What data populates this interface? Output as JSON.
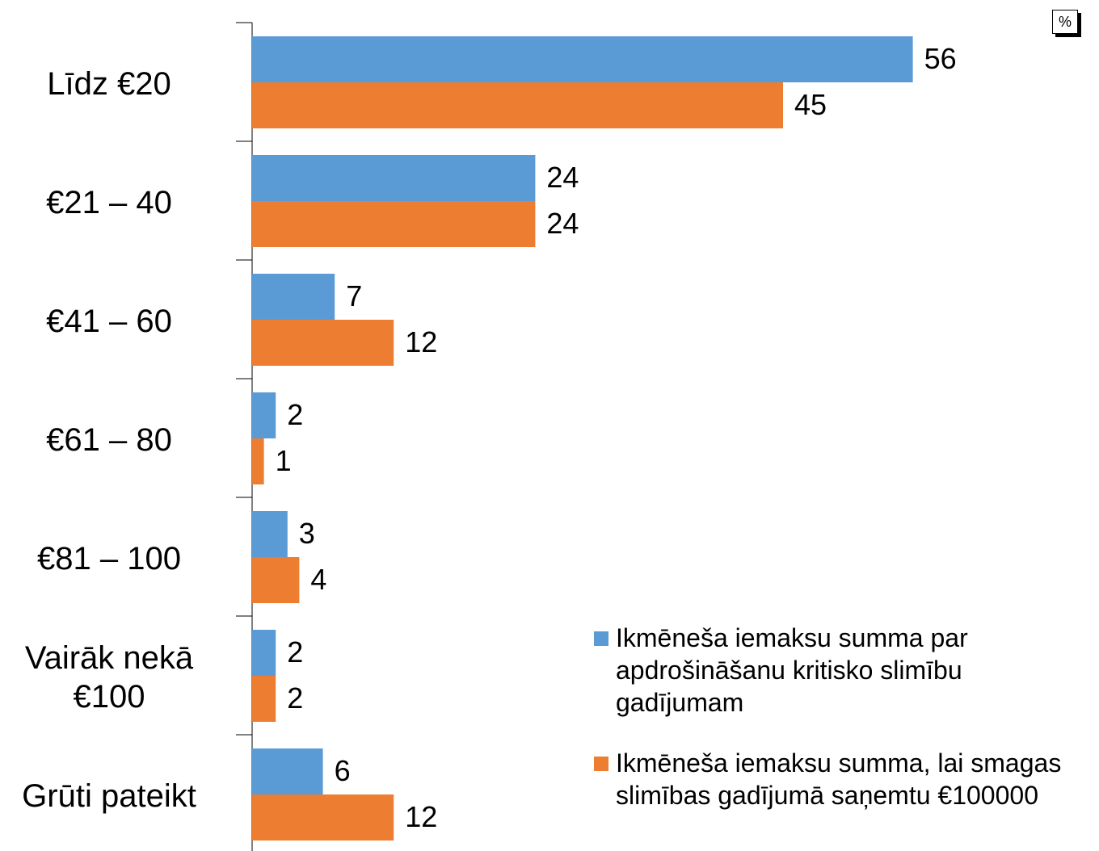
{
  "chart_data": {
    "type": "barh",
    "unit_label": "%",
    "categories": [
      "Līdz €20",
      "€21 – 40",
      "€41 – 60",
      "€61 – 80",
      "€81 – 100",
      "Vairāk nekā €100",
      "Grūti pateikt"
    ],
    "series": [
      {
        "name": "Ikmēneša iemaksu summa par apdrošināšanu kritisko slimību gadījumam",
        "color": "#5b9bd5",
        "values": [
          56,
          24,
          7,
          2,
          3,
          2,
          6
        ]
      },
      {
        "name": "Ikmēneša iemaksu summa, lai smagas slimības gadījumā saņemtu €100000",
        "color": "#ed7d31",
        "values": [
          45,
          24,
          12,
          1,
          4,
          2,
          12
        ]
      }
    ],
    "xlim": [
      0,
      70
    ]
  }
}
